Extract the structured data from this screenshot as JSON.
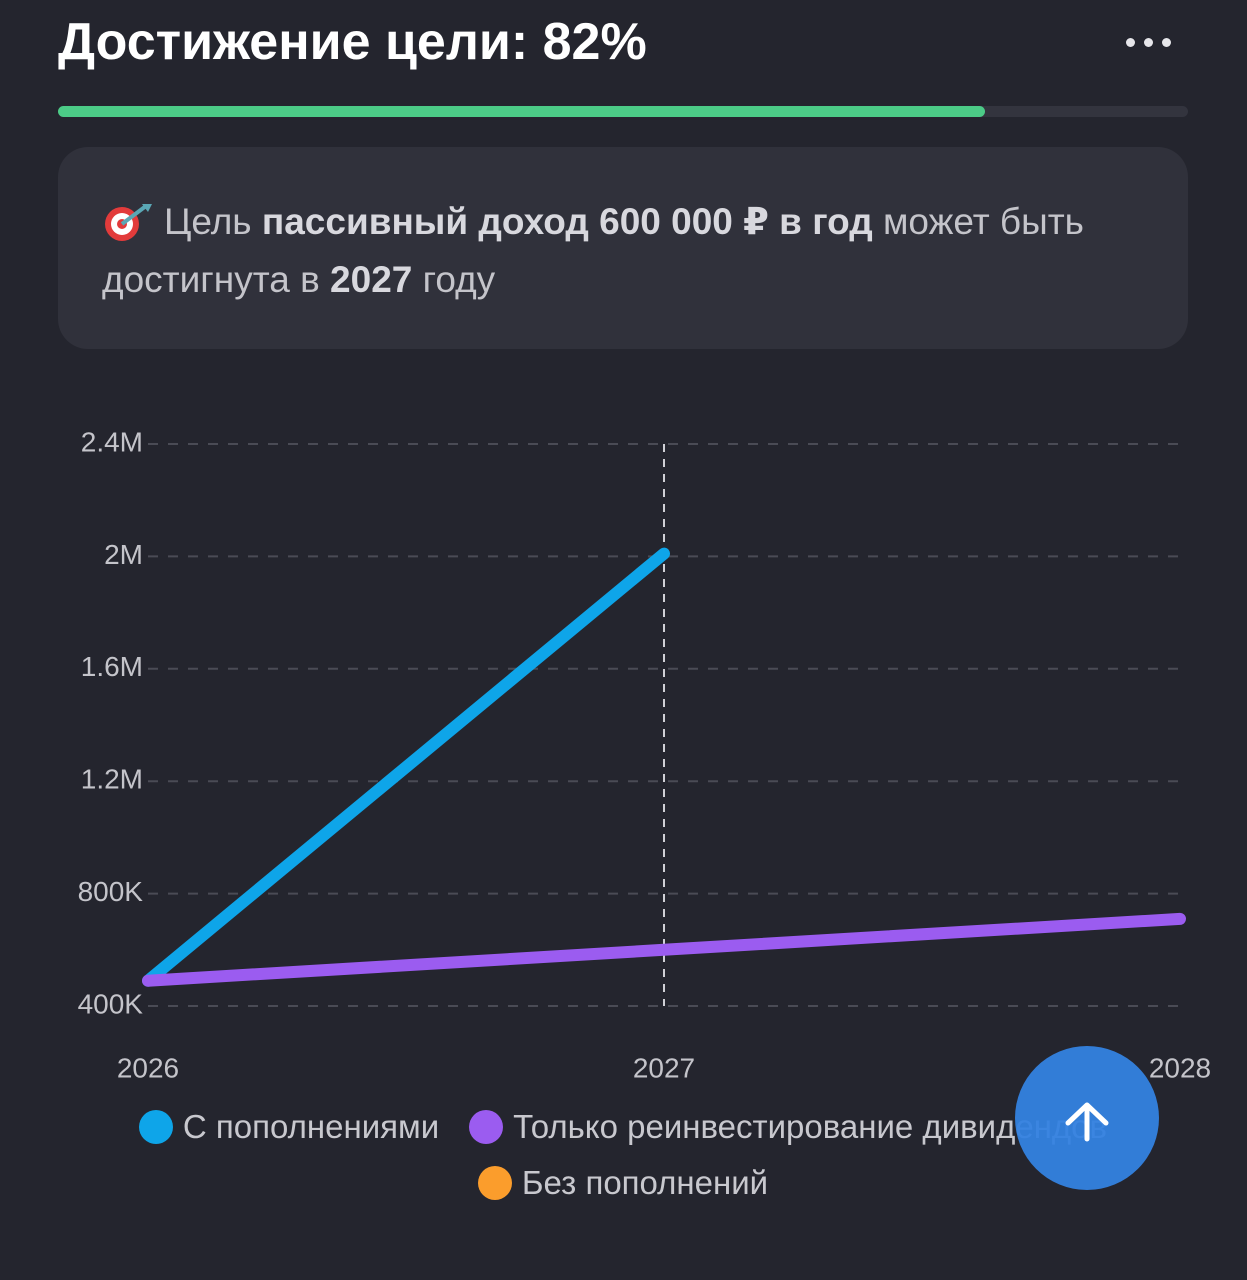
{
  "header": {
    "title": "Достижение цели: 82%",
    "progress": 82
  },
  "info": {
    "segments": [
      {
        "text": "Цель ",
        "bold": false
      },
      {
        "text": "пассивный доход 600 000 ₽ в год",
        "bold": true
      },
      {
        "text": " может быть достигнута в ",
        "bold": false
      },
      {
        "text": "2027",
        "bold": true
      },
      {
        "text": " году",
        "bold": false
      }
    ]
  },
  "chart_data": {
    "type": "line",
    "x": [
      2026,
      2027,
      2028
    ],
    "xlim": [
      2026,
      2028
    ],
    "xticks": [
      2026,
      2027,
      2028
    ],
    "ylim": [
      400000,
      2400000
    ],
    "yticks": [
      {
        "value": 400000,
        "label": "400K"
      },
      {
        "value": 800000,
        "label": "800K"
      },
      {
        "value": 1200000,
        "label": "1.2M"
      },
      {
        "value": 1600000,
        "label": "1.6M"
      },
      {
        "value": 2000000,
        "label": "2M"
      },
      {
        "value": 2400000,
        "label": "2.4M"
      }
    ],
    "grid": true,
    "marker_x": 2027,
    "series": [
      {
        "name": "С пополнениями",
        "color": "#0ea5e9",
        "values": [
          490000,
          2010000,
          null
        ]
      },
      {
        "name": "Только реинвестирование дивидендов",
        "color": "#9b5cf0",
        "values": [
          490000,
          600000,
          710000
        ]
      },
      {
        "name": "Без пополнений",
        "color": "#fb9d2c",
        "values": [
          null,
          null,
          null
        ]
      }
    ]
  }
}
